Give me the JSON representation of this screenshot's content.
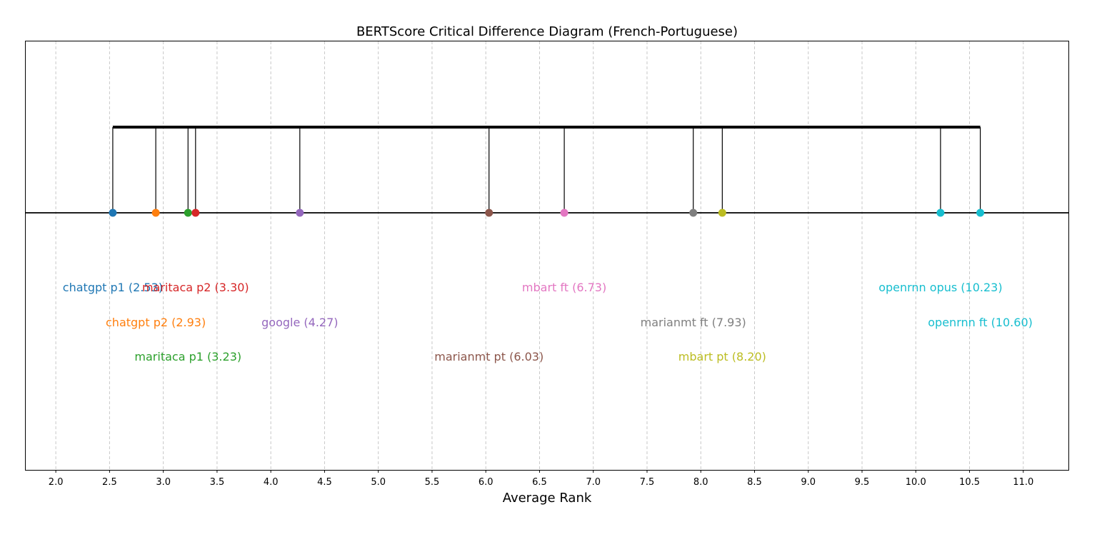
{
  "chart_data": {
    "type": "scatter",
    "title": "BERTScore Critical Difference Diagram (French-Portuguese)",
    "xlabel": "Average Rank",
    "ylabel": "",
    "xlim": [
      1.72,
      11.42
    ],
    "x_ticks": [
      2.0,
      2.5,
      3.0,
      3.5,
      4.0,
      4.5,
      5.0,
      5.5,
      6.0,
      6.5,
      7.0,
      7.5,
      8.0,
      8.5,
      9.0,
      9.5,
      10.0,
      10.5,
      11.0
    ],
    "x_tick_labels": [
      "2.0",
      "2.5",
      "3.0",
      "3.5",
      "4.0",
      "4.5",
      "5.0",
      "5.5",
      "6.0",
      "6.5",
      "7.0",
      "7.5",
      "8.0",
      "8.5",
      "9.0",
      "9.5",
      "10.0",
      "10.5",
      "11.0"
    ],
    "grid": "vertical dashed",
    "cd_group": {
      "from": 2.53,
      "to": 10.6
    },
    "series": [
      {
        "name": "chatgpt p1",
        "x": 2.53,
        "label": "chatgpt p1 (2.53)",
        "color": "#1f77b4",
        "row": 0
      },
      {
        "name": "chatgpt p2",
        "x": 2.93,
        "label": "chatgpt p2 (2.93)",
        "color": "#ff7f0e",
        "row": 1
      },
      {
        "name": "maritaca p1",
        "x": 3.23,
        "label": "maritaca p1 (3.23)",
        "color": "#2ca02c",
        "row": 2
      },
      {
        "name": "maritaca p2",
        "x": 3.3,
        "label": "maritaca p2 (3.30)",
        "color": "#d62728",
        "row": 0
      },
      {
        "name": "google",
        "x": 4.27,
        "label": "google (4.27)",
        "color": "#9467bd",
        "row": 1
      },
      {
        "name": "marianmt pt",
        "x": 6.03,
        "label": "marianmt pt (6.03)",
        "color": "#8c564b",
        "row": 2
      },
      {
        "name": "mbart ft",
        "x": 6.73,
        "label": "mbart ft (6.73)",
        "color": "#e377c2",
        "row": 0
      },
      {
        "name": "marianmt ft",
        "x": 7.93,
        "label": "marianmt ft (7.93)",
        "color": "#7f7f7f",
        "row": 1
      },
      {
        "name": "mbart pt",
        "x": 8.2,
        "label": "mbart pt (8.20)",
        "color": "#bcbd22",
        "row": 2
      },
      {
        "name": "openrnn opus",
        "x": 10.23,
        "label": "openrnn opus (10.23)",
        "color": "#17becf",
        "row": 0
      },
      {
        "name": "openrnn ft",
        "x": 10.6,
        "label": "openrnn ft (10.60)",
        "color": "#17becf",
        "row": 1
      }
    ]
  }
}
